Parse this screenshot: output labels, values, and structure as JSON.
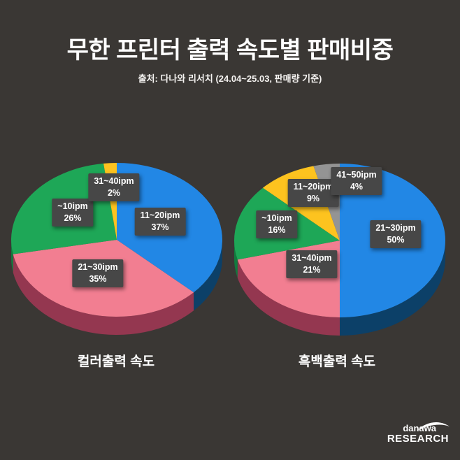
{
  "page": {
    "background_color": "#3a3734",
    "label_box_color": "#474747",
    "text_color": "#ffffff"
  },
  "header": {
    "title": "무한 프린터 출력 속도별 판매비중",
    "subtitle": "출처: 다나와 리서치 (24.04~25.03, 판매량 기준)"
  },
  "chart_data": [
    {
      "type": "pie",
      "style": "3d",
      "title": "컬러출력 속도",
      "unit": "%",
      "start_angle_deg": 0,
      "direction": "clockwise",
      "labels": [
        "11~20ipm",
        "21~30ipm",
        "~10ipm",
        "31~40ipm"
      ],
      "values": [
        37,
        35,
        26,
        2
      ],
      "colors": [
        "#2287e5",
        "#f27e91",
        "#1ea757",
        "#fdc31f"
      ],
      "side_colors": [
        "#0c4068",
        "#943750",
        "#117a3e",
        "#c2930f"
      ]
    },
    {
      "type": "pie",
      "style": "3d",
      "title": "흑백출력 속도",
      "unit": "%",
      "start_angle_deg": 0,
      "direction": "clockwise",
      "labels": [
        "21~30ipm",
        "31~40ipm",
        "~10ipm",
        "11~20ipm",
        "41~50ipm"
      ],
      "values": [
        50,
        21,
        16,
        9,
        4
      ],
      "colors": [
        "#2287e5",
        "#f27e91",
        "#1ea757",
        "#fdc31f",
        "#949494"
      ],
      "side_colors": [
        "#0c4068",
        "#943750",
        "#117a3e",
        "#c2930f",
        "#6e6e6e"
      ]
    }
  ],
  "footer": {
    "logo_line1": "danawa",
    "logo_line2": "RESEARCH"
  }
}
